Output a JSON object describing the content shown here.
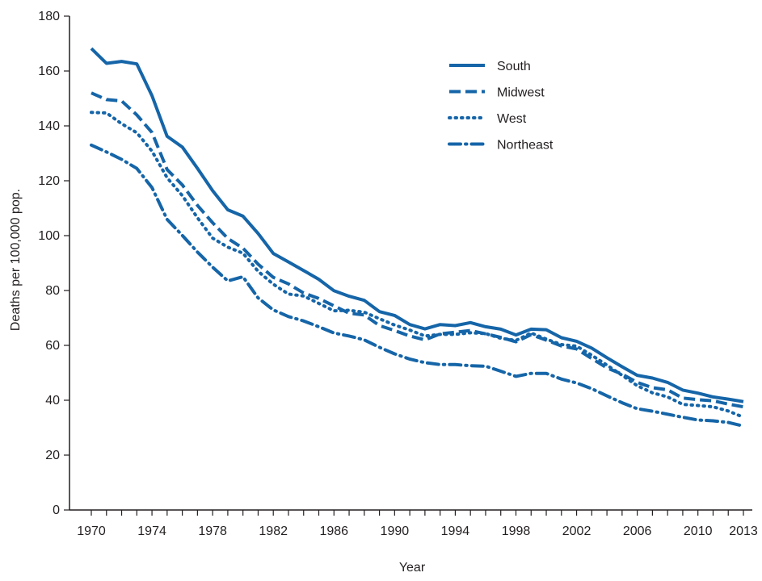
{
  "chart_data": {
    "type": "line",
    "title": "",
    "xlabel": "Year",
    "ylabel": "Deaths per 100,000 pop.",
    "xlim": [
      1970,
      2013
    ],
    "ylim": [
      0,
      180
    ],
    "yticks": [
      0,
      20,
      40,
      60,
      80,
      100,
      120,
      140,
      160,
      180
    ],
    "xtick_labels": [
      "1970",
      "1974",
      "1978",
      "1982",
      "1986",
      "1990",
      "1994",
      "1998",
      "2002",
      "2006",
      "2010",
      "2013"
    ],
    "x": [
      1970,
      1971,
      1972,
      1973,
      1974,
      1975,
      1976,
      1977,
      1978,
      1979,
      1980,
      1981,
      1982,
      1983,
      1984,
      1985,
      1986,
      1987,
      1988,
      1989,
      1990,
      1991,
      1992,
      1993,
      1994,
      1995,
      1996,
      1997,
      1998,
      1999,
      2000,
      2001,
      2002,
      2003,
      2004,
      2005,
      2006,
      2007,
      2008,
      2009,
      2010,
      2011,
      2012,
      2013
    ],
    "grid": false,
    "legend_position": "top-right",
    "line_color": "#1565a8",
    "series": [
      {
        "name": "South",
        "style": "solid",
        "values": [
          168.2,
          162.8,
          163.5,
          162.6,
          151,
          136.2,
          132.3,
          124.5,
          116.4,
          109.4,
          107.1,
          100.8,
          93.5,
          90.4,
          87.3,
          84.1,
          79.9,
          77.9,
          76.4,
          72.3,
          70.9,
          67.6,
          66,
          67.6,
          67.2,
          68.3,
          66.8,
          65.9,
          63.8,
          65.9,
          65.7,
          62.8,
          61.5,
          59,
          55.5,
          52.2,
          49.1,
          48.1,
          46.5,
          43.7,
          42.6,
          41.2,
          40.4,
          39.5
        ]
      },
      {
        "name": "Midwest",
        "style": "dashed",
        "values": [
          152,
          149.6,
          149.1,
          144,
          137.6,
          124.1,
          118.5,
          111,
          104.7,
          99,
          95.4,
          89.6,
          84.8,
          82.4,
          79.1,
          77.1,
          74.4,
          71.7,
          71.1,
          67.2,
          65.4,
          63.4,
          62,
          64.2,
          64.8,
          65.4,
          64.2,
          62.9,
          61.3,
          63.9,
          61.9,
          59.8,
          58.7,
          55.2,
          51.8,
          49.5,
          46.5,
          44.6,
          43.8,
          40.8,
          40.2,
          39.8,
          38.6,
          37.6
        ]
      },
      {
        "name": "West",
        "style": "dotted",
        "values": [
          144.9,
          144.7,
          140.8,
          137.5,
          130.8,
          121.1,
          114.6,
          106.5,
          99.1,
          95.8,
          93.6,
          87,
          82.3,
          78.7,
          78,
          75.3,
          72.6,
          72.8,
          72.1,
          69.7,
          67.4,
          65.6,
          63.4,
          64,
          64,
          64.6,
          64.3,
          62.6,
          61.8,
          64.5,
          62.3,
          60.3,
          59.7,
          56.4,
          52.8,
          49.1,
          45.3,
          42.7,
          41.2,
          38.5,
          38.1,
          37.6,
          36.1,
          33.8
        ]
      },
      {
        "name": "Northeast",
        "style": "dashdot",
        "values": [
          133,
          130.5,
          127.8,
          124.5,
          117.5,
          105.9,
          100.1,
          94,
          88.5,
          83.5,
          85,
          77.3,
          72.9,
          70.5,
          68.9,
          66.8,
          64.5,
          63.4,
          62,
          59.3,
          56.9,
          55,
          53.7,
          53,
          53,
          52.6,
          52.4,
          50.6,
          48.7,
          49.8,
          49.8,
          47.7,
          46.3,
          44.2,
          41.6,
          39.1,
          36.9,
          36,
          34.9,
          33.8,
          32.8,
          32.5,
          31.9,
          30.6
        ]
      }
    ]
  }
}
